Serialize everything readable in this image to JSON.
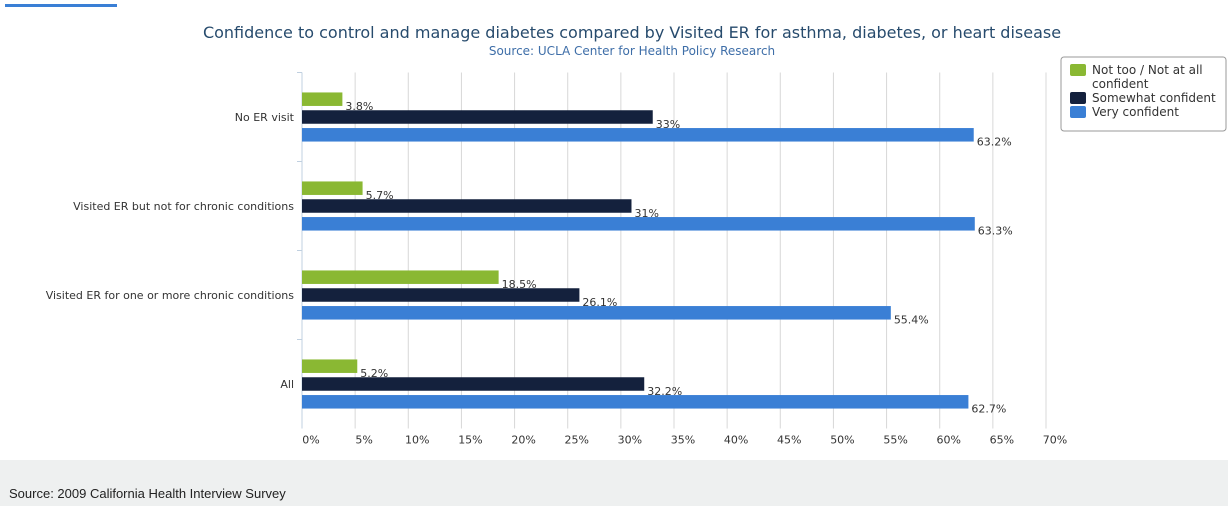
{
  "chart_data": {
    "type": "hbar",
    "title": "Confidence to control and manage diabetes compared by Visited ER for asthma, diabetes, or heart disease",
    "subtitle": "Source: UCLA Center for Health Policy Research",
    "categories": [
      "No ER visit",
      "Visited ER but not for chronic conditions",
      "Visited ER for one or more chronic conditions",
      "All"
    ],
    "series": [
      {
        "name": "Not too / Not at all confident",
        "color": "#8ab833",
        "values": [
          3.8,
          5.7,
          18.5,
          5.2
        ],
        "value_labels": [
          "3.8%",
          "5.7%",
          "18.5%",
          "5.2%"
        ]
      },
      {
        "name": "Somewhat confident",
        "color": "#14213d",
        "values": [
          33,
          31,
          26.1,
          32.2
        ],
        "value_labels": [
          "33%",
          "31%",
          "26.1%",
          "32.2%"
        ]
      },
      {
        "name": "Very confident",
        "color": "#3a7fd5",
        "values": [
          63.2,
          63.3,
          55.4,
          62.7
        ],
        "value_labels": [
          "63.2%",
          "63.3%",
          "55.4%",
          "62.7%"
        ]
      }
    ],
    "xlim": [
      0,
      70
    ],
    "xticks": [
      {
        "value": 0,
        "label": "0%"
      },
      {
        "value": 5,
        "label": "5%"
      },
      {
        "value": 10,
        "label": "10%"
      },
      {
        "value": 15,
        "label": "15%"
      },
      {
        "value": 20,
        "label": "20%"
      },
      {
        "value": 25,
        "label": "25%"
      },
      {
        "value": 30,
        "label": "30%"
      },
      {
        "value": 35,
        "label": "35%"
      },
      {
        "value": 40,
        "label": "40%"
      },
      {
        "value": 45,
        "label": "45%"
      },
      {
        "value": 50,
        "label": "50%"
      },
      {
        "value": 55,
        "label": "55%"
      },
      {
        "value": 60,
        "label": "60%"
      },
      {
        "value": 65,
        "label": "65%"
      },
      {
        "value": 70,
        "label": "70%"
      }
    ],
    "grid": true,
    "legend": "top-right"
  },
  "footer": "Source: 2009 California Health Interview Survey"
}
